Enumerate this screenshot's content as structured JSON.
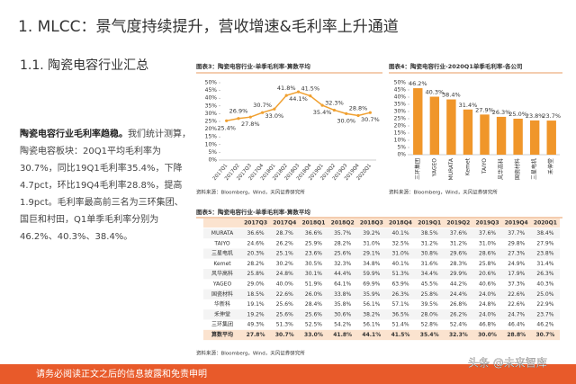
{
  "header": {
    "title": "1. MLCC：景气度持续提升，营收增速&毛利率上升通道",
    "subtitle": "1.1. 陶瓷电容行业汇总"
  },
  "text": {
    "lead": "陶瓷电容行业毛利率趋稳。",
    "body": "我们统计测算，陶瓷电容板块：20Q1平均毛利率为30.7%，同比19Q1毛利率35.4%，下降4.7pct，环比19Q4毛利率28.8%，提高1.9pct。毛利率最高前三名为三环集团、国巨和村田，Q1单季毛利率分别为46.2%、40.3%、38.4%。"
  },
  "chart_data": [
    {
      "type": "line",
      "title": "图表3：陶瓷电容行业-单季毛利率-算数平均",
      "source": "资料来源：Bloomberg，Wind，天风证券研究所",
      "categories": [
        "2017Q1",
        "2017Q2",
        "2017Q3",
        "2017Q4",
        "2018Q1",
        "2018Q2",
        "2018Q3",
        "2018Q4",
        "2019Q1",
        "2019Q2",
        "2019Q3",
        "2019Q4",
        "2020Q1"
      ],
      "values": [
        25.4,
        26.9,
        27.8,
        30.7,
        33.0,
        41.8,
        44.1,
        41.5,
        35.4,
        32.3,
        30.0,
        28.8,
        30.7
      ],
      "value_labels": [
        "25.4%",
        "26.9%",
        "27.8%",
        "30.7%",
        "33.0%",
        "41.8%",
        "44.1%",
        "41.5%",
        "35.4%",
        "32.3%",
        "30.0%",
        "28.8%",
        "30.7%"
      ],
      "color": "#f0a030",
      "ylim": [
        0,
        50
      ],
      "yticks": [
        {
          "value": 0,
          "label": "0%"
        },
        {
          "value": 5,
          "label": "5%"
        },
        {
          "value": 10,
          "label": "10%"
        },
        {
          "value": 15,
          "label": "15%"
        },
        {
          "value": 20,
          "label": "20%"
        },
        {
          "value": 25,
          "label": "25%"
        },
        {
          "value": 30,
          "label": "30%"
        },
        {
          "value": 35,
          "label": "35%"
        },
        {
          "value": 40,
          "label": "40%"
        },
        {
          "value": 45,
          "label": "45%"
        },
        {
          "value": 50,
          "label": "50%"
        }
      ]
    },
    {
      "type": "bar",
      "title": "图表4：陶瓷电容行业-2020Q1单季毛利率-各公司",
      "source": "资料来源：Bloomberg，Wind，天风证券研究所",
      "categories": [
        "三环集团",
        "YAGEO",
        "MURATA",
        "Kemet",
        "TAIYO",
        "风华高科",
        "国瓷材料",
        "三星电机",
        "禾伸堂"
      ],
      "values": [
        46.2,
        40.3,
        38.4,
        31.4,
        27.9,
        26.3,
        25.0,
        23.8,
        23.7
      ],
      "value_labels": [
        "46.2%",
        "40.3%",
        "38.4%",
        "31.4%",
        "27.9%",
        "26.3%",
        "25.0%",
        "23.8%",
        "23.7%"
      ],
      "color": "#f0962a",
      "ylim": [
        0,
        50
      ],
      "yticks": [
        {
          "value": 0,
          "label": "0%"
        },
        {
          "value": 5,
          "label": "5%"
        },
        {
          "value": 10,
          "label": "10%"
        },
        {
          "value": 15,
          "label": "15%"
        },
        {
          "value": 20,
          "label": "20%"
        },
        {
          "value": 25,
          "label": "25%"
        },
        {
          "value": 30,
          "label": "30%"
        },
        {
          "value": 35,
          "label": "35%"
        },
        {
          "value": 40,
          "label": "40%"
        },
        {
          "value": 45,
          "label": "45%"
        },
        {
          "value": 50,
          "label": "50%"
        }
      ]
    }
  ],
  "table": {
    "title": "图表5：陶瓷电容行业-单季毛利率-算数平均",
    "columns": [
      "2017Q3",
      "2017Q4",
      "2018Q1",
      "2018Q2",
      "2018Q3",
      "2018Q4",
      "2019Q1",
      "2019Q2",
      "2019Q3",
      "2019Q4",
      "2020Q1"
    ],
    "rows": [
      {
        "name": "MURATA",
        "values": [
          "36.6%",
          "28.7%",
          "36.6%",
          "35.7%",
          "39.2%",
          "40.1%",
          "38.5%",
          "37.6%",
          "37.6%",
          "37.7%",
          "38.4%"
        ]
      },
      {
        "name": "TAIYO",
        "values": [
          "24.6%",
          "26.2%",
          "25.9%",
          "28.2%",
          "31.0%",
          "32.5%",
          "31.2%",
          "31.2%",
          "31.0%",
          "29.8%",
          "27.9%"
        ]
      },
      {
        "name": "三星电机",
        "values": [
          "20.3%",
          "25.1%",
          "23.6%",
          "25.6%",
          "29.1%",
          "31.0%",
          "30.8%",
          "29.6%",
          "28.6%",
          "27.3%",
          "23.8%"
        ]
      },
      {
        "name": "Kemet",
        "values": [
          "28.2%",
          "30.2%",
          "30.5%",
          "32.3%",
          "34.8%",
          "40.1%",
          "31.6%",
          "28.3%",
          "25.8%",
          "24.9%",
          "31.4%"
        ]
      },
      {
        "name": "风华高科",
        "values": [
          "25.8%",
          "24.8%",
          "30.1%",
          "44.4%",
          "59.9%",
          "51.3%",
          "34.4%",
          "29.9%",
          "20.6%",
          "17.9%",
          "26.3%"
        ]
      },
      {
        "name": "YAGEO",
        "values": [
          "29.0%",
          "40.0%",
          "51.9%",
          "64.1%",
          "69.9%",
          "63.9%",
          "45.5%",
          "44.2%",
          "40.6%",
          "37.3%",
          "40.3%"
        ]
      },
      {
        "name": "国瓷材料",
        "values": [
          "18.5%",
          "22.6%",
          "26.0%",
          "33.8%",
          "35.9%",
          "26.3%",
          "25.8%",
          "24.4%",
          "24.0%",
          "22.6%",
          "25.0%"
        ]
      },
      {
        "name": "华新科",
        "values": [
          "19.1%",
          "25.6%",
          "28.4%",
          "35.8%",
          "56.1%",
          "57.1%",
          "39.5%",
          "26.8%",
          "24.8%",
          "22.6%",
          "22.9%"
        ]
      },
      {
        "name": "禾伸堂",
        "values": [
          "19.2%",
          "25.6%",
          "25.6%",
          "30.6%",
          "38.2%",
          "36.5%",
          "28.0%",
          "26.2%",
          "24.0%",
          "24.7%",
          "23.7%"
        ]
      },
      {
        "name": "三环集团",
        "values": [
          "49.3%",
          "51.3%",
          "52.5%",
          "54.2%",
          "56.1%",
          "51.4%",
          "52.8%",
          "52.4%",
          "46.8%",
          "46.4%",
          "46.2%"
        ]
      },
      {
        "name": "算数平均",
        "values": [
          "27.8%",
          "30.7%",
          "33.0%",
          "41.8%",
          "44.1%",
          "41.5%",
          "35.4%",
          "32.3%",
          "30.0%",
          "28.8%",
          "30.7%"
        ]
      }
    ],
    "source": "资料来源：Bloomberg，Wind，天风证券研究所"
  },
  "footer": {
    "disclaimer": "请务必阅读正文之后的信息披露和免责申明",
    "watermark": "头条 @未来智库"
  }
}
